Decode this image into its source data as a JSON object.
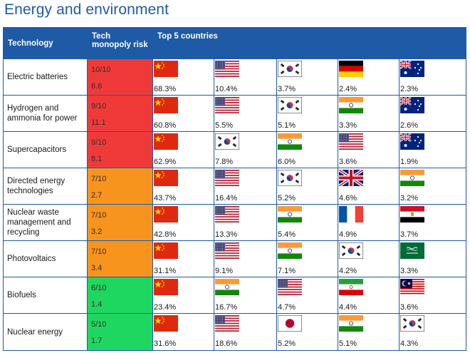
{
  "title": "Energy and environment",
  "headers": {
    "technology": "Technology",
    "risk": "Tech monopoly risk",
    "countries": "Top 5 countries"
  },
  "colors": {
    "header": "#1f5aa6",
    "red": "#f03a3a",
    "orange": "#f7941d",
    "green": "#1ed760"
  },
  "rows": [
    {
      "tech": "Electric batteries",
      "score": "10/10",
      "value": "6.6",
      "level": "red",
      "countries": [
        {
          "flag": "china",
          "pct": "68.3%"
        },
        {
          "flag": "usa",
          "pct": "10.4%"
        },
        {
          "flag": "south-korea",
          "pct": "3.7%"
        },
        {
          "flag": "germany",
          "pct": "2.4%"
        },
        {
          "flag": "australia",
          "pct": "2.3%"
        }
      ]
    },
    {
      "tech": "Hydrogen and ammonia for power",
      "score": "9/10",
      "value": "11.1",
      "level": "red",
      "countries": [
        {
          "flag": "china",
          "pct": "60.8%"
        },
        {
          "flag": "usa",
          "pct": "5.5%"
        },
        {
          "flag": "south-korea",
          "pct": "5.1%"
        },
        {
          "flag": "india",
          "pct": "3.3%"
        },
        {
          "flag": "australia",
          "pct": "2.6%"
        }
      ]
    },
    {
      "tech": "Supercapacitors",
      "score": "9/10",
      "value": "8.1",
      "level": "red",
      "countries": [
        {
          "flag": "china",
          "pct": "62.9%"
        },
        {
          "flag": "south-korea",
          "pct": "7.8%"
        },
        {
          "flag": "india",
          "pct": "6.0%"
        },
        {
          "flag": "usa",
          "pct": "3.6%"
        },
        {
          "flag": "australia",
          "pct": "1.9%"
        }
      ]
    },
    {
      "tech": "Directed energy technologies",
      "score": "7/10",
      "value": "2.7",
      "level": "orange",
      "countries": [
        {
          "flag": "china",
          "pct": "43.7%"
        },
        {
          "flag": "usa",
          "pct": "16.4%"
        },
        {
          "flag": "south-korea",
          "pct": "5.2%"
        },
        {
          "flag": "uk",
          "pct": "4.6%"
        },
        {
          "flag": "india",
          "pct": "3.2%"
        }
      ]
    },
    {
      "tech": "Nuclear waste management and recycling",
      "score": "7/10",
      "value": "3.2",
      "level": "orange",
      "countries": [
        {
          "flag": "china",
          "pct": "42.8%"
        },
        {
          "flag": "usa",
          "pct": "13.3%"
        },
        {
          "flag": "india",
          "pct": "5.4%"
        },
        {
          "flag": "france",
          "pct": "4.9%"
        },
        {
          "flag": "egypt",
          "pct": "3.7%"
        }
      ]
    },
    {
      "tech": "Photovoltaics",
      "score": "7/10",
      "value": "3.4",
      "level": "orange",
      "countries": [
        {
          "flag": "china",
          "pct": "31.1%"
        },
        {
          "flag": "usa",
          "pct": "9.1%"
        },
        {
          "flag": "india",
          "pct": "7.1%"
        },
        {
          "flag": "south-korea",
          "pct": "4.2%"
        },
        {
          "flag": "saudi-arabia",
          "pct": "3.3%"
        }
      ]
    },
    {
      "tech": "Biofuels",
      "score": "6/10",
      "value": "1.4",
      "level": "green",
      "countries": [
        {
          "flag": "china",
          "pct": "23.4%"
        },
        {
          "flag": "india",
          "pct": "16.7%"
        },
        {
          "flag": "usa",
          "pct": "4.7%"
        },
        {
          "flag": "iran",
          "pct": "4.4%"
        },
        {
          "flag": "malaysia",
          "pct": "3.6%"
        }
      ]
    },
    {
      "tech": "Nuclear energy",
      "score": "5/10",
      "value": "1.7",
      "level": "green",
      "countries": [
        {
          "flag": "china",
          "pct": "31.6%"
        },
        {
          "flag": "usa",
          "pct": "18.6%"
        },
        {
          "flag": "japan",
          "pct": "5.2%"
        },
        {
          "flag": "india",
          "pct": "5.1%"
        },
        {
          "flag": "south-korea",
          "pct": "4.3%"
        }
      ]
    }
  ]
}
